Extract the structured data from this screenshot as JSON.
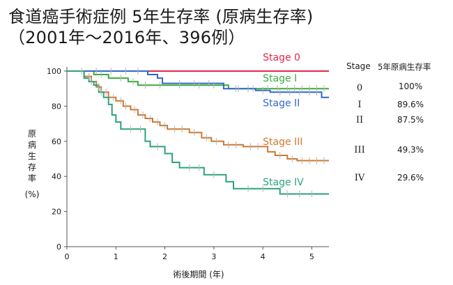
{
  "title_line1": "食道癌手術症例 5年生存率 (原病生存率)",
  "title_line2": "（2001年～2016年、396例）",
  "chart_data": {
    "type": "line",
    "subtype": "kaplan-meier",
    "xlabel": "術後期間 (年)",
    "ylabel": "原病生存率",
    "ylabel_unit": "(%)",
    "xlim": [
      0,
      5.35
    ],
    "ylim": [
      0,
      100
    ],
    "x_ticks": [
      0,
      1,
      2,
      3,
      4,
      5
    ],
    "y_ticks": [
      0,
      20,
      40,
      60,
      80,
      100
    ],
    "grid": false,
    "series": [
      {
        "name": "Stage 0",
        "color": "#e0284a",
        "points": [
          [
            0,
            100
          ],
          [
            5.35,
            100
          ]
        ],
        "censors": []
      },
      {
        "name": "Stage I",
        "color": "#3cab3c",
        "points": [
          [
            0,
            100
          ],
          [
            0.55,
            100
          ],
          [
            0.55,
            98
          ],
          [
            0.85,
            98
          ],
          [
            0.85,
            96
          ],
          [
            1.25,
            96
          ],
          [
            1.25,
            94
          ],
          [
            1.45,
            94
          ],
          [
            1.45,
            92
          ],
          [
            3.3,
            92
          ],
          [
            3.3,
            90
          ],
          [
            5.35,
            90
          ]
        ],
        "censors": [
          [
            0.3,
            100
          ],
          [
            0.7,
            98
          ],
          [
            1.1,
            96
          ],
          [
            1.35,
            94
          ],
          [
            1.6,
            92
          ],
          [
            1.9,
            92
          ],
          [
            2.3,
            92
          ],
          [
            2.7,
            92
          ],
          [
            3.0,
            92
          ],
          [
            3.5,
            90
          ],
          [
            3.8,
            90
          ],
          [
            4.1,
            90
          ],
          [
            4.3,
            90
          ],
          [
            4.5,
            90
          ],
          [
            4.65,
            90
          ],
          [
            4.8,
            90
          ],
          [
            4.95,
            90
          ],
          [
            5.1,
            90
          ],
          [
            5.25,
            90
          ]
        ]
      },
      {
        "name": "Stage II",
        "color": "#3366cc",
        "points": [
          [
            0,
            100
          ],
          [
            1.65,
            100
          ],
          [
            1.65,
            98
          ],
          [
            1.85,
            98
          ],
          [
            1.85,
            96
          ],
          [
            1.95,
            96
          ],
          [
            1.95,
            93
          ],
          [
            3.2,
            93
          ],
          [
            3.2,
            90
          ],
          [
            3.85,
            90
          ],
          [
            3.85,
            89
          ],
          [
            4.15,
            89
          ],
          [
            4.15,
            88
          ],
          [
            5.2,
            88
          ],
          [
            5.2,
            85
          ],
          [
            5.35,
            85
          ]
        ],
        "censors": [
          [
            0.6,
            100
          ],
          [
            0.9,
            100
          ],
          [
            1.2,
            100
          ],
          [
            1.45,
            100
          ],
          [
            2.3,
            93
          ],
          [
            2.6,
            93
          ],
          [
            2.9,
            93
          ],
          [
            3.45,
            90
          ],
          [
            3.7,
            90
          ],
          [
            4.0,
            89
          ],
          [
            4.35,
            88
          ],
          [
            4.55,
            88
          ],
          [
            4.75,
            88
          ],
          [
            4.95,
            88
          ],
          [
            5.1,
            88
          ]
        ]
      },
      {
        "name": "Stage III",
        "color": "#cc7a33",
        "points": [
          [
            0,
            100
          ],
          [
            0.35,
            100
          ],
          [
            0.35,
            97
          ],
          [
            0.5,
            97
          ],
          [
            0.5,
            94
          ],
          [
            0.6,
            94
          ],
          [
            0.6,
            91
          ],
          [
            0.7,
            91
          ],
          [
            0.7,
            88
          ],
          [
            0.85,
            88
          ],
          [
            0.85,
            85
          ],
          [
            1.0,
            85
          ],
          [
            1.0,
            83
          ],
          [
            1.15,
            83
          ],
          [
            1.15,
            80
          ],
          [
            1.3,
            80
          ],
          [
            1.3,
            78
          ],
          [
            1.45,
            78
          ],
          [
            1.45,
            75
          ],
          [
            1.6,
            75
          ],
          [
            1.6,
            73
          ],
          [
            1.75,
            73
          ],
          [
            1.75,
            71
          ],
          [
            1.9,
            71
          ],
          [
            1.9,
            69
          ],
          [
            2.05,
            69
          ],
          [
            2.05,
            67
          ],
          [
            2.5,
            67
          ],
          [
            2.5,
            65
          ],
          [
            2.75,
            65
          ],
          [
            2.75,
            62
          ],
          [
            2.95,
            62
          ],
          [
            2.95,
            60
          ],
          [
            3.2,
            60
          ],
          [
            3.2,
            58
          ],
          [
            3.6,
            58
          ],
          [
            3.6,
            57
          ],
          [
            4.1,
            57
          ],
          [
            4.1,
            54
          ],
          [
            4.25,
            54
          ],
          [
            4.25,
            52
          ],
          [
            4.5,
            52
          ],
          [
            4.5,
            50
          ],
          [
            4.7,
            50
          ],
          [
            4.7,
            49
          ],
          [
            5.35,
            49
          ]
        ],
        "censors": [
          [
            0.45,
            97
          ],
          [
            0.65,
            91
          ],
          [
            0.8,
            88
          ],
          [
            0.95,
            85
          ],
          [
            1.1,
            83
          ],
          [
            1.2,
            80
          ],
          [
            1.38,
            78
          ],
          [
            1.55,
            75
          ],
          [
            1.7,
            73
          ],
          [
            1.85,
            71
          ],
          [
            2.0,
            69
          ],
          [
            2.2,
            67
          ],
          [
            2.35,
            67
          ],
          [
            2.6,
            65
          ],
          [
            2.85,
            62
          ],
          [
            3.05,
            60
          ],
          [
            3.3,
            58
          ],
          [
            3.45,
            58
          ],
          [
            3.75,
            57
          ],
          [
            3.9,
            57
          ],
          [
            4.35,
            52
          ],
          [
            4.6,
            50
          ],
          [
            4.8,
            49
          ],
          [
            4.95,
            49
          ],
          [
            5.1,
            49
          ],
          [
            5.25,
            49
          ]
        ]
      },
      {
        "name": "Stage IV",
        "color": "#2aa37a",
        "points": [
          [
            0,
            100
          ],
          [
            0.35,
            100
          ],
          [
            0.35,
            96
          ],
          [
            0.45,
            96
          ],
          [
            0.45,
            94
          ],
          [
            0.55,
            94
          ],
          [
            0.55,
            92
          ],
          [
            0.65,
            92
          ],
          [
            0.65,
            88
          ],
          [
            0.75,
            88
          ],
          [
            0.75,
            85
          ],
          [
            0.85,
            85
          ],
          [
            0.85,
            81
          ],
          [
            0.92,
            81
          ],
          [
            0.92,
            75
          ],
          [
            1.0,
            75
          ],
          [
            1.0,
            71
          ],
          [
            1.1,
            71
          ],
          [
            1.1,
            67
          ],
          [
            1.6,
            67
          ],
          [
            1.6,
            60
          ],
          [
            1.7,
            60
          ],
          [
            1.7,
            57
          ],
          [
            2.0,
            57
          ],
          [
            2.0,
            53
          ],
          [
            2.15,
            53
          ],
          [
            2.15,
            48
          ],
          [
            2.3,
            48
          ],
          [
            2.3,
            45
          ],
          [
            2.8,
            45
          ],
          [
            2.8,
            41
          ],
          [
            3.25,
            41
          ],
          [
            3.25,
            37
          ],
          [
            3.4,
            37
          ],
          [
            3.4,
            33
          ],
          [
            4.35,
            33
          ],
          [
            4.35,
            30
          ],
          [
            5.35,
            30
          ]
        ],
        "censors": [
          [
            0.5,
            94
          ],
          [
            0.7,
            88
          ],
          [
            1.3,
            67
          ],
          [
            1.5,
            67
          ],
          [
            1.85,
            57
          ],
          [
            2.5,
            45
          ],
          [
            2.7,
            45
          ],
          [
            3.0,
            41
          ],
          [
            3.7,
            33
          ],
          [
            4.0,
            33
          ],
          [
            4.5,
            30
          ],
          [
            4.75,
            30
          ],
          [
            5.0,
            30
          ]
        ]
      }
    ],
    "series_labels": [
      {
        "text": "Stage 0",
        "x": 4.0,
        "y": 106
      },
      {
        "text": "Stage I",
        "x": 4.0,
        "y": 94
      },
      {
        "text": "Stage II",
        "x": 4.0,
        "y": 80
      },
      {
        "text": "Stage III",
        "x": 4.0,
        "y": 58
      },
      {
        "text": "Stage IV",
        "x": 4.0,
        "y": 35
      }
    ],
    "censor_color": "#b5b5b5"
  },
  "survival_table": {
    "header_stage": "Stage",
    "header_rate": "5年原病生存率",
    "rows": [
      {
        "stage": "0",
        "rate": "100%"
      },
      {
        "stage": "I",
        "rate": "89.6%"
      },
      {
        "stage": "II",
        "rate": "87.5%"
      },
      {
        "stage": "III",
        "rate": "49.3%"
      },
      {
        "stage": "IV",
        "rate": "29.6%"
      }
    ]
  }
}
